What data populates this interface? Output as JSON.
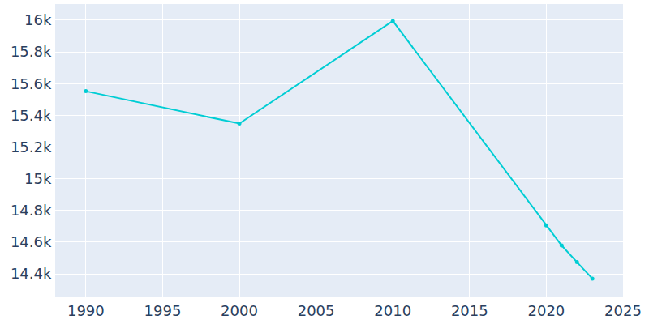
{
  "chart_data": {
    "type": "line",
    "x": [
      1990,
      2000,
      2010,
      2020,
      2021,
      2022,
      2023
    ],
    "values": [
      15552,
      15348,
      15995,
      14706,
      14579,
      14474,
      14370
    ],
    "color": "#00cdd4",
    "marker": "circle",
    "xlim": [
      1988,
      2025
    ],
    "xticks": [
      1990,
      1995,
      2000,
      2005,
      2010,
      2015,
      2020,
      2025
    ],
    "ylim": [
      14252,
      16102
    ],
    "yticks": [
      {
        "value": 14400,
        "label": "14.4k"
      },
      {
        "value": 14600,
        "label": "14.6k"
      },
      {
        "value": 14800,
        "label": "14.8k"
      },
      {
        "value": 15000,
        "label": "15k"
      },
      {
        "value": 15200,
        "label": "15.2k"
      },
      {
        "value": 15400,
        "label": "15.4k"
      },
      {
        "value": 15600,
        "label": "15.6k"
      },
      {
        "value": 15800,
        "label": "15.8k"
      },
      {
        "value": 16000,
        "label": "16k"
      }
    ],
    "grid": true
  }
}
